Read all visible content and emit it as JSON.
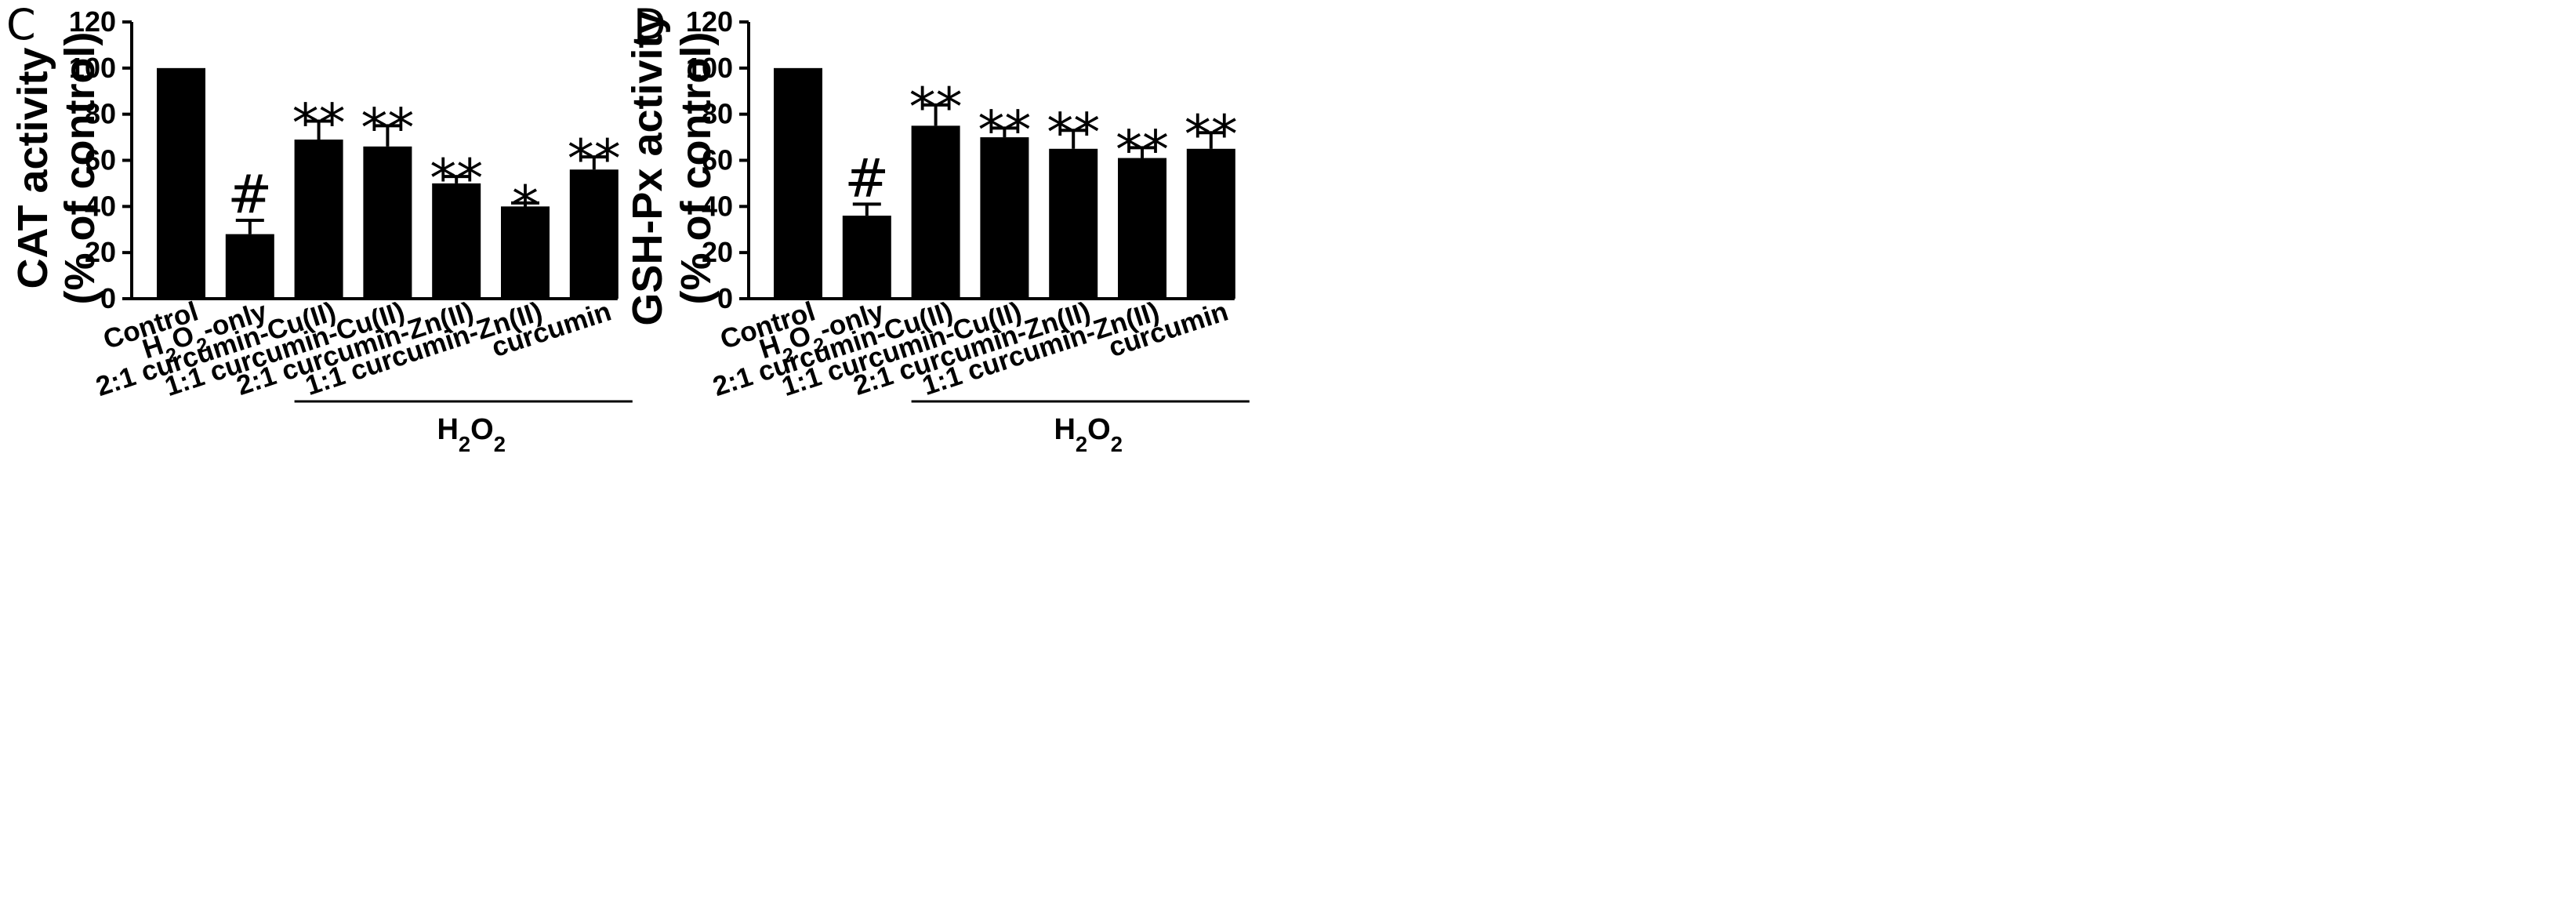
{
  "chart_data": [
    {
      "type": "bar",
      "panel": "C",
      "ylabel_line1": "CAT activity",
      "ylabel_line2": "(% of control)",
      "categories": [
        "Control",
        "H2O2-only",
        "2:1 curcumin-Cu(II)",
        "1:1 curcumin-Cu(II)",
        "2:1 curcumin-Zn(II)",
        "1:1 curcumin-Zn(II)",
        "curcumin"
      ],
      "values": [
        100,
        28,
        69,
        66,
        50,
        40,
        56
      ],
      "errors": [
        0,
        6,
        8,
        9,
        3,
        1.5,
        5.5
      ],
      "significance": [
        "",
        "#",
        "**",
        "**",
        "**",
        "*",
        "**"
      ],
      "ylim": [
        0,
        120
      ],
      "yticks": [
        "0",
        "20",
        "40",
        "60",
        "80",
        "100",
        "120"
      ],
      "group_label": "H2O2"
    },
    {
      "type": "bar",
      "panel": "D",
      "ylabel_line1": "GSH-Px activity",
      "ylabel_line2": "(% of control)",
      "categories": [
        "Control",
        "H2O2-only",
        "2:1 curcumin-Cu(II)",
        "1:1 curcumin-Cu(II)",
        "2:1 curcumin-Zn(II)",
        "1:1 curcumin-Zn(II)",
        "curcumin"
      ],
      "values": [
        100,
        36,
        75,
        70,
        65,
        61,
        65
      ],
      "errors": [
        0,
        5,
        9,
        4,
        8,
        4.5,
        7
      ],
      "significance": [
        "",
        "#",
        "**",
        "**",
        "**",
        "**",
        "**"
      ],
      "ylim": [
        0,
        120
      ],
      "yticks": [
        "0",
        "20",
        "40",
        "60",
        "80",
        "100",
        "120"
      ],
      "group_label": "H2O2"
    }
  ]
}
